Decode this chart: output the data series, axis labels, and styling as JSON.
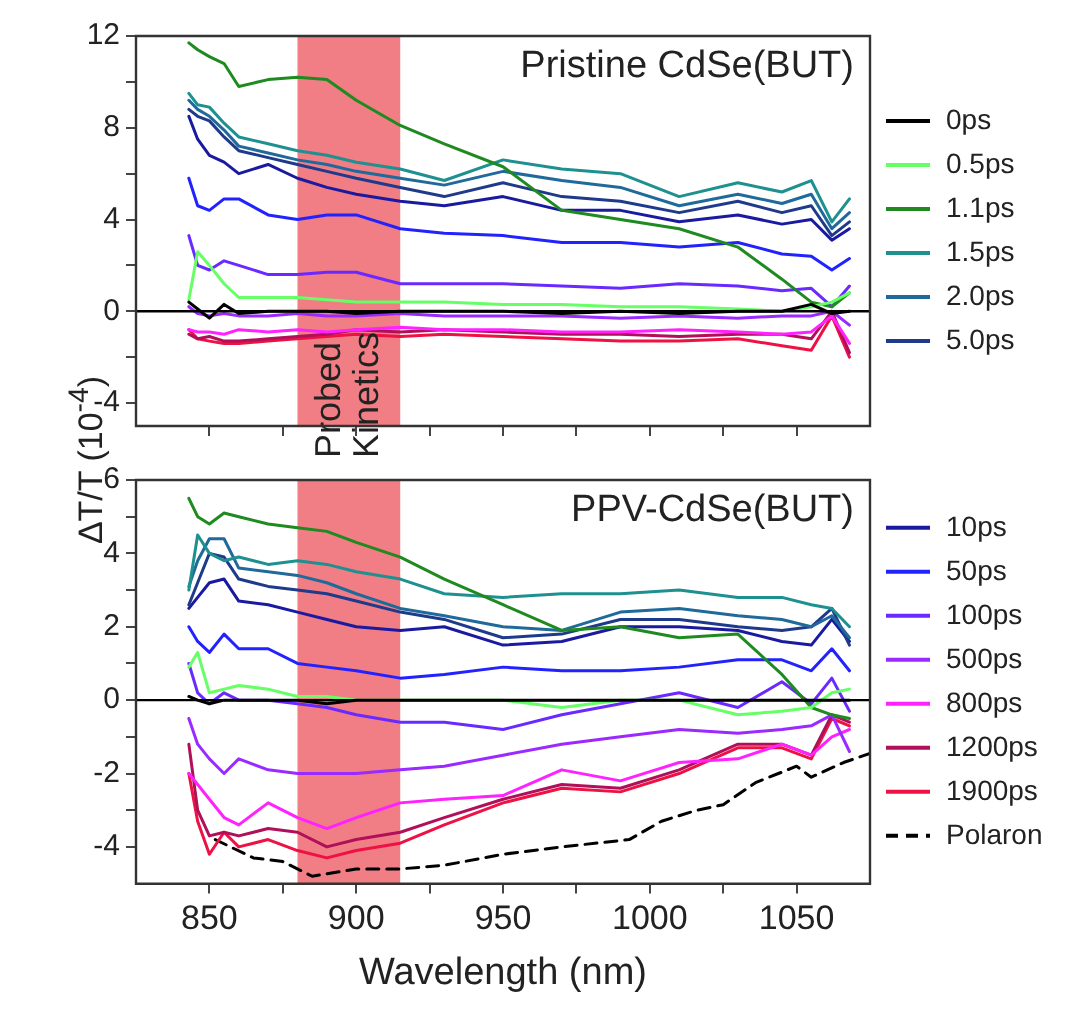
{
  "chart_data": [
    {
      "type": "line",
      "ylabel": "ΔT/T  (10$^{-4}$)",
      "annotations": [
        "Pristine CdSe(BUT)"
      ],
      "xlim": [
        825,
        1075
      ],
      "xticks": [
        850,
        {
          "value": 875,
          "label": null
        },
        900,
        {
          "value": 925,
          "label": null
        },
        950,
        {
          "value": 975,
          "label": null
        },
        1000,
        {
          "value": 1025,
          "label": null
        },
        1050
      ],
      "ylim": [
        -5,
        12
      ],
      "yticks": [
        -4,
        {
          "value": -2,
          "label": null
        },
        0,
        {
          "value": 2,
          "label": null
        },
        4,
        {
          "value": 6,
          "label": null
        },
        8,
        {
          "value": 10,
          "label": null
        },
        12
      ],
      "tick_labels": "y",
      "grid": false,
      "legend": "right",
      "marker": "none",
      "line_style": "solid",
      "bands": [
        {
          "axis": "x",
          "from": 880,
          "to": 915,
          "label": "Probed Kinetics",
          "color": "#ee6670"
        }
      ],
      "ref_lines": [
        {
          "axis": "y",
          "value": 0,
          "color": "#000000"
        }
      ],
      "x": [
        843,
        846,
        850,
        855,
        860,
        870,
        880,
        890,
        900,
        915,
        930,
        950,
        970,
        990,
        1010,
        1030,
        1045,
        1055,
        1062,
        1068
      ],
      "series": [
        {
          "name": "0ps",
          "color": "#000000",
          "values": [
            0.4,
            0.1,
            -0.3,
            0.3,
            -0.1,
            0,
            0,
            0,
            -0.1,
            0,
            0,
            0,
            -0.1,
            0,
            -0.1,
            0,
            0,
            0.3,
            -0.1,
            0
          ]
        },
        {
          "name": "0.5ps",
          "color": "#66ff66",
          "values": [
            0.5,
            2.6,
            2.0,
            1.2,
            0.6,
            0.6,
            0.6,
            0.5,
            0.4,
            0.4,
            0.4,
            0.3,
            0.3,
            0.2,
            0.2,
            0.1,
            0,
            0.2,
            0.4,
            0.8
          ]
        },
        {
          "name": "1.1ps",
          "color": "#1f8a1f",
          "values": [
            11.7,
            11.4,
            11.1,
            10.8,
            9.8,
            10.1,
            10.2,
            10.1,
            9.2,
            8.1,
            7.3,
            6.3,
            4.4,
            4.0,
            3.6,
            2.8,
            1.4,
            0.4,
            0.2,
            0.8
          ]
        },
        {
          "name": "1.5ps",
          "color": "#1f9090",
          "values": [
            9.5,
            9.0,
            8.9,
            8.2,
            7.6,
            7.3,
            7.0,
            6.8,
            6.5,
            6.2,
            5.7,
            6.6,
            6.2,
            6.0,
            5.0,
            5.6,
            5.2,
            5.7,
            3.9,
            4.9
          ]
        },
        {
          "name": "2.0ps",
          "color": "#1f6a9a",
          "values": [
            9.2,
            8.8,
            8.5,
            7.9,
            7.2,
            6.9,
            6.6,
            6.4,
            6.1,
            5.8,
            5.5,
            6.1,
            5.7,
            5.4,
            4.6,
            5.1,
            4.7,
            5.1,
            3.6,
            4.3
          ]
        },
        {
          "name": "5.0ps",
          "color": "#1f3a8a",
          "values": [
            8.8,
            8.5,
            8.3,
            7.6,
            7.0,
            6.7,
            6.4,
            6.1,
            5.8,
            5.4,
            5.0,
            5.6,
            5.0,
            4.8,
            4.3,
            4.8,
            4.3,
            4.6,
            3.3,
            3.9
          ]
        },
        {
          "color": "#1a1aa0",
          "values": [
            8.5,
            7.5,
            6.8,
            6.5,
            6.0,
            6.4,
            5.8,
            5.4,
            5.1,
            4.8,
            4.6,
            5.0,
            4.4,
            4.4,
            3.9,
            4.2,
            3.8,
            4.0,
            3.1,
            3.6
          ]
        },
        {
          "color": "#2222ff",
          "values": [
            5.8,
            4.6,
            4.4,
            4.9,
            4.9,
            4.2,
            4.0,
            4.2,
            4.2,
            3.6,
            3.4,
            3.3,
            3.0,
            3.0,
            2.8,
            3.0,
            2.5,
            2.4,
            1.8,
            2.3
          ]
        },
        {
          "color": "#6a2aff",
          "values": [
            3.3,
            2.0,
            1.8,
            2.2,
            2.0,
            1.6,
            1.6,
            1.7,
            1.7,
            1.2,
            1.2,
            1.2,
            1.1,
            1.0,
            1.2,
            1.1,
            0.9,
            1.0,
            0.2,
            1.1
          ]
        },
        {
          "color": "#9a2aff",
          "values": [
            0.2,
            -0.1,
            -0.2,
            -0.1,
            -0.2,
            -0.2,
            -0.1,
            -0.2,
            -0.2,
            -0.1,
            -0.2,
            -0.2,
            -0.2,
            -0.3,
            -0.2,
            -0.3,
            -0.2,
            -0.2,
            0,
            -0.6
          ]
        },
        {
          "color": "#ff22ff",
          "values": [
            -0.8,
            -0.9,
            -0.9,
            -1.0,
            -0.8,
            -0.9,
            -0.8,
            -0.9,
            -0.8,
            -0.7,
            -0.8,
            -0.8,
            -0.9,
            -0.9,
            -0.8,
            -0.9,
            -1.0,
            -0.9,
            -0.2,
            -1.4
          ]
        },
        {
          "color": "#b0105a",
          "values": [
            -1.0,
            -1.2,
            -1.1,
            -1.3,
            -1.3,
            -1.2,
            -1.1,
            -1.0,
            -0.8,
            -0.9,
            -0.8,
            -0.9,
            -1.0,
            -1.0,
            -1.1,
            -1.0,
            -1.0,
            -1.2,
            0.0,
            -1.8
          ]
        },
        {
          "color": "#ee1144",
          "values": [
            -0.8,
            -1.2,
            -1.3,
            -1.4,
            -1.4,
            -1.3,
            -1.2,
            -1.1,
            -1.0,
            -1.1,
            -1.0,
            -1.1,
            -1.2,
            -1.3,
            -1.3,
            -1.2,
            -1.5,
            -1.7,
            -0.2,
            -2.0
          ]
        }
      ]
    },
    {
      "type": "line",
      "xlabel": "Wavelength (nm)",
      "annotations": [
        "PPV-CdSe(BUT)"
      ],
      "xlim": [
        825,
        1075
      ],
      "xticks": [
        850,
        {
          "value": 875,
          "label": null
        },
        900,
        {
          "value": 925,
          "label": null
        },
        950,
        {
          "value": 975,
          "label": null
        },
        1000,
        {
          "value": 1025,
          "label": null
        },
        1050
      ],
      "ylim": [
        -5,
        6
      ],
      "yticks": [
        -4,
        {
          "value": -3,
          "label": null
        },
        -2,
        {
          "value": -1,
          "label": null
        },
        0,
        {
          "value": 1,
          "label": null
        },
        2,
        {
          "value": 3,
          "label": null
        },
        4,
        {
          "value": 5,
          "label": null
        },
        6
      ],
      "grid": false,
      "legend": "right",
      "marker": "none",
      "line_style": "solid",
      "bands": [
        {
          "axis": "x",
          "from": 880,
          "to": 915,
          "color": "#ee6670"
        }
      ],
      "ref_lines": [
        {
          "axis": "y",
          "value": 0,
          "color": "#000000"
        }
      ],
      "x": [
        843,
        846,
        850,
        855,
        860,
        870,
        880,
        890,
        900,
        915,
        930,
        950,
        970,
        990,
        1010,
        1030,
        1045,
        1055,
        1062,
        1068
      ],
      "series": [
        {
          "color": "#000000",
          "values": [
            0.1,
            0,
            -0.1,
            0,
            0,
            0,
            0,
            -0.1,
            0,
            0,
            0,
            0,
            0,
            0,
            0,
            0,
            0,
            0,
            0,
            0
          ]
        },
        {
          "color": "#66ff66",
          "values": [
            0.9,
            1.3,
            0.2,
            0.3,
            0.4,
            0.3,
            0.1,
            0.1,
            0,
            0,
            0,
            0,
            -0.2,
            0,
            0,
            -0.4,
            -0.3,
            -0.2,
            0.2,
            0.3
          ]
        },
        {
          "color": "#1f8a1f",
          "values": [
            5.5,
            5.0,
            4.8,
            5.1,
            5.0,
            4.8,
            4.7,
            4.6,
            4.3,
            3.9,
            3.3,
            2.6,
            1.9,
            2.0,
            1.7,
            1.8,
            0.7,
            -0.2,
            -0.4,
            -0.5
          ]
        },
        {
          "color": "#1f9090",
          "values": [
            3.0,
            4.5,
            4.0,
            3.8,
            3.9,
            3.7,
            3.8,
            3.7,
            3.5,
            3.3,
            2.9,
            2.8,
            2.9,
            2.9,
            3.0,
            2.8,
            2.8,
            2.6,
            2.5,
            2.0
          ]
        },
        {
          "color": "#1f6a9a",
          "values": [
            3.1,
            3.8,
            4.4,
            4.4,
            3.6,
            3.5,
            3.4,
            3.2,
            2.9,
            2.5,
            2.3,
            2.0,
            1.9,
            2.4,
            2.5,
            2.3,
            2.2,
            2.0,
            2.3,
            1.7
          ]
        },
        {
          "color": "#1f3a8a",
          "values": [
            2.6,
            3.2,
            4.0,
            3.9,
            3.3,
            3.1,
            3.0,
            2.9,
            2.7,
            2.4,
            2.2,
            1.7,
            1.8,
            2.2,
            2.2,
            2.0,
            1.9,
            2.0,
            2.5,
            1.5
          ]
        },
        {
          "name": "10ps",
          "color": "#1a1aa0",
          "values": [
            2.5,
            2.8,
            3.2,
            3.3,
            2.7,
            2.6,
            2.4,
            2.2,
            2.0,
            1.9,
            2.0,
            1.5,
            1.6,
            2.0,
            2.0,
            1.9,
            1.6,
            1.5,
            2.2,
            1.6
          ]
        },
        {
          "name": "50ps",
          "color": "#2222ff",
          "values": [
            2.0,
            1.6,
            1.3,
            1.8,
            1.4,
            1.4,
            1.0,
            0.9,
            0.8,
            0.6,
            0.7,
            0.9,
            0.8,
            0.8,
            0.9,
            1.1,
            1.1,
            0.8,
            1.4,
            0.8
          ]
        },
        {
          "name": "100ps",
          "color": "#6a2aff",
          "values": [
            1.0,
            0.2,
            -0.1,
            0.2,
            0,
            0,
            -0.1,
            -0.2,
            -0.4,
            -0.6,
            -0.6,
            -0.8,
            -0.4,
            -0.1,
            0.2,
            -0.2,
            0.5,
            -0.1,
            0.6,
            -0.3
          ]
        },
        {
          "name": "500ps",
          "color": "#9a2aff",
          "values": [
            -0.5,
            -1.2,
            -1.6,
            -2.0,
            -1.6,
            -1.9,
            -2.0,
            -2.0,
            -2.0,
            -1.9,
            -1.8,
            -1.5,
            -1.2,
            -1.0,
            -0.8,
            -0.9,
            -0.8,
            -0.7,
            -0.4,
            -1.4
          ]
        },
        {
          "name": "800ps",
          "color": "#ff22ff",
          "values": [
            -2.0,
            -2.3,
            -2.7,
            -3.2,
            -3.4,
            -2.8,
            -3.2,
            -3.5,
            -3.2,
            -2.8,
            -2.7,
            -2.6,
            -1.9,
            -2.2,
            -1.7,
            -1.6,
            -1.2,
            -1.5,
            -1.0,
            -0.8
          ]
        },
        {
          "name": "1200ps",
          "color": "#b0105a",
          "values": [
            -1.2,
            -3.0,
            -3.7,
            -3.6,
            -3.7,
            -3.5,
            -3.6,
            -4.0,
            -3.8,
            -3.6,
            -3.2,
            -2.7,
            -2.3,
            -2.4,
            -1.9,
            -1.2,
            -1.2,
            -1.5,
            -0.4,
            -0.6
          ]
        },
        {
          "name": "1900ps",
          "color": "#ee1144",
          "values": [
            -2.0,
            -3.3,
            -4.2,
            -3.6,
            -4.0,
            -3.8,
            -4.1,
            -4.3,
            -4.1,
            -3.9,
            -3.4,
            -2.8,
            -2.4,
            -2.5,
            -2.0,
            -1.3,
            -1.3,
            -1.6,
            -0.5,
            -0.7
          ]
        },
        {
          "name": "Polaron",
          "color": "#000000",
          "line_style": "dashed",
          "x": [
            852,
            865,
            875,
            885,
            900,
            915,
            930,
            950,
            970,
            993,
            1004,
            1016,
            1025,
            1036,
            1050,
            1055,
            1066,
            1075
          ],
          "values": [
            -3.8,
            -4.3,
            -4.4,
            -4.8,
            -4.6,
            -4.6,
            -4.5,
            -4.2,
            -4.0,
            -3.8,
            -3.3,
            -3.0,
            -2.85,
            -2.25,
            -1.8,
            -2.1,
            -1.7,
            -1.45
          ]
        }
      ]
    }
  ]
}
